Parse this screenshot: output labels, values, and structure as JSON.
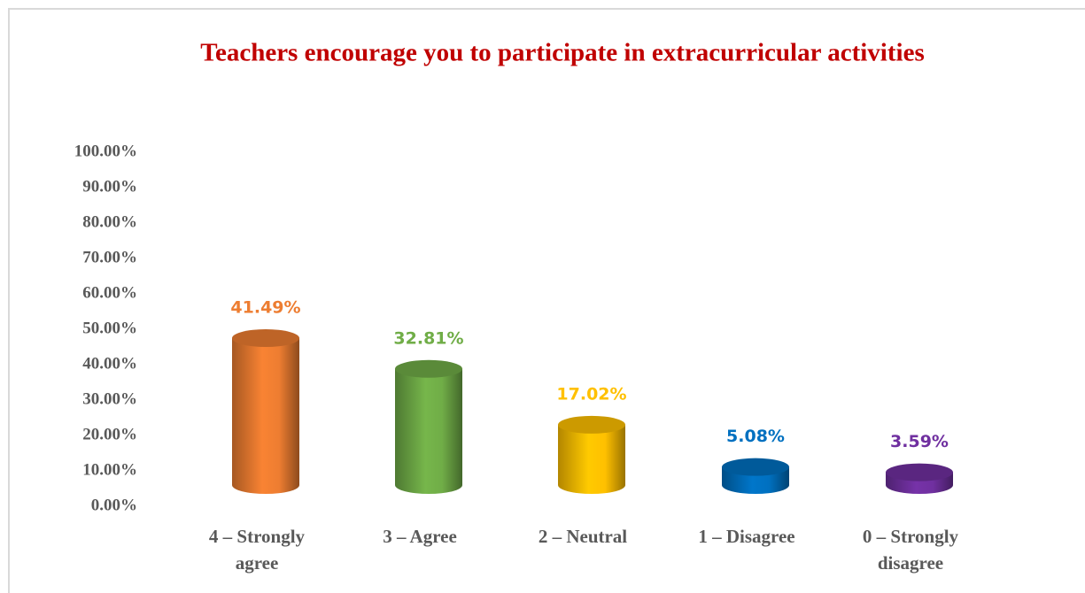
{
  "chart_data": {
    "type": "bar",
    "title": "Teachers encourage you to participate in  extracurricular activities",
    "categories": [
      "4 – Strongly agree",
      "3 – Agree",
      "2 – Neutral",
      "1 – Disagree",
      "0 – Strongly disagree"
    ],
    "values": [
      41.49,
      32.81,
      17.02,
      5.08,
      3.59
    ],
    "value_labels": [
      "41.49%",
      "32.81%",
      "17.02%",
      "5.08%",
      "3.59%"
    ],
    "colors": [
      "#ED7D31",
      "#70AD47",
      "#FFC000",
      "#0070C0",
      "#7030A0"
    ],
    "ylim": [
      0,
      100
    ],
    "yticks": [
      {
        "value": 0,
        "label": "0.00%"
      },
      {
        "value": 10,
        "label": "10.00%"
      },
      {
        "value": 20,
        "label": "20.00%"
      },
      {
        "value": 30,
        "label": "30.00%"
      },
      {
        "value": 40,
        "label": "40.00%"
      },
      {
        "value": 50,
        "label": "50.00%"
      },
      {
        "value": 60,
        "label": "60.00%"
      },
      {
        "value": 70,
        "label": "70.00%"
      },
      {
        "value": 80,
        "label": "80.00%"
      },
      {
        "value": 90,
        "label": "90.00%"
      },
      {
        "value": 100,
        "label": "100.00%"
      }
    ],
    "grid": false
  }
}
